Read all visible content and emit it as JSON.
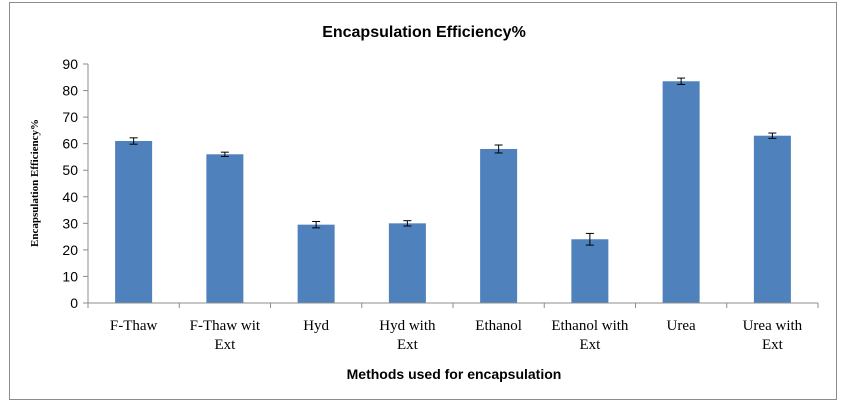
{
  "chart_data": {
    "type": "bar",
    "title": "Encapsulation  Efficiency%",
    "xlabel": "Methods used for encapsulation",
    "ylabel": "Encapsulation Efficiency%",
    "ylim": [
      0,
      90
    ],
    "yticks": [
      0,
      10,
      20,
      30,
      40,
      50,
      60,
      70,
      80,
      90
    ],
    "grid": false,
    "legend": "none",
    "bar_color": "#4f81bd",
    "categories": [
      [
        "F-Thaw"
      ],
      [
        "F-Thaw wit",
        "Ext"
      ],
      [
        "Hyd"
      ],
      [
        "Hyd with",
        "Ext"
      ],
      [
        "Ethanol"
      ],
      [
        "Ethanol with",
        "Ext"
      ],
      [
        "Urea"
      ],
      [
        "Urea with",
        "Ext"
      ]
    ],
    "values": [
      61,
      56,
      29.5,
      30,
      58,
      24,
      83.5,
      63
    ],
    "errors": [
      1.2,
      0.8,
      1.2,
      1.0,
      1.5,
      2.2,
      1.2,
      1.0
    ]
  }
}
